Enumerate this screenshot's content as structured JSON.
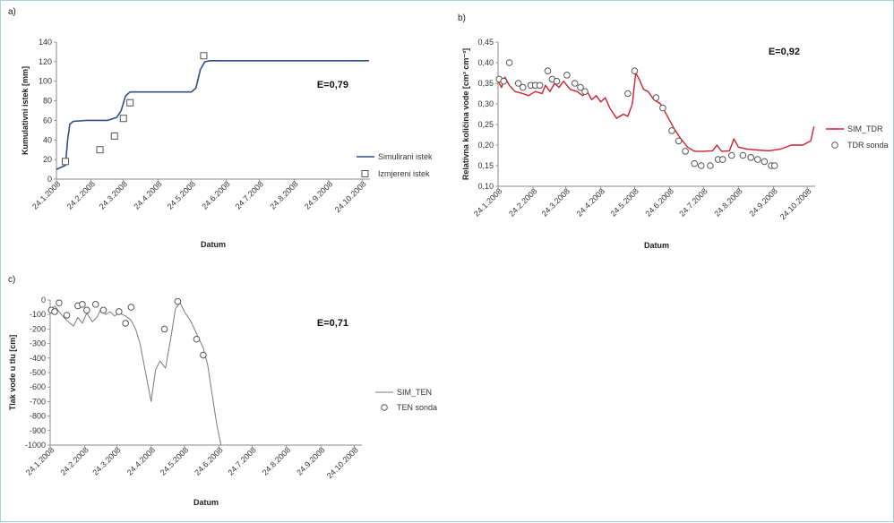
{
  "chart_data": [
    {
      "panel": "a)",
      "type": "line",
      "efficiency": "E=0,79",
      "xlabel": "Datum",
      "ylabel": "Kumulativni istek [mm]",
      "ylim": [
        0,
        140
      ],
      "yticks": [
        "0",
        "20",
        "40",
        "60",
        "80",
        "100",
        "120",
        "140"
      ],
      "x_ticks": [
        "24.1.2008",
        "24.2.2008",
        "24.3.2008",
        "24.4.2008",
        "24.5.2008",
        "24.6.2008",
        "24.7.2008",
        "24.8.2008",
        "24.9.2008",
        "24.10.2008"
      ],
      "colors": {
        "sim": "#2b4f86",
        "obs": "#555555"
      },
      "series": [
        {
          "name": "Simulirani istek",
          "style": "line",
          "points": [
            [
              "2008-01-24",
              10
            ],
            [
              "2008-01-28",
              12
            ],
            [
              "2008-02-01",
              14
            ],
            [
              "2008-02-03",
              40
            ],
            [
              "2008-02-05",
              56
            ],
            [
              "2008-02-08",
              59
            ],
            [
              "2008-02-20",
              60
            ],
            [
              "2008-03-10",
              60
            ],
            [
              "2008-03-18",
              63
            ],
            [
              "2008-03-22",
              70
            ],
            [
              "2008-03-26",
              85
            ],
            [
              "2008-03-30",
              89
            ],
            [
              "2008-04-15",
              89
            ],
            [
              "2008-05-24",
              89
            ],
            [
              "2008-05-28",
              93
            ],
            [
              "2008-06-01",
              112
            ],
            [
              "2008-06-05",
              120
            ],
            [
              "2008-06-10",
              121
            ],
            [
              "2008-07-24",
              121
            ],
            [
              "2008-10-30",
              121
            ]
          ]
        },
        {
          "name": "Izmjereni istek",
          "style": "square-marker",
          "points": [
            [
              "2008-02-01",
              18
            ],
            [
              "2008-03-03",
              30
            ],
            [
              "2008-03-16",
              44
            ],
            [
              "2008-03-24",
              62
            ],
            [
              "2008-03-30",
              78
            ],
            [
              "2008-06-04",
              126
            ]
          ]
        }
      ]
    },
    {
      "panel": "b)",
      "type": "line",
      "efficiency": "E=0,92",
      "xlabel": "Datum",
      "ylabel": "Relativna količina vode [cm³ cm⁻³]",
      "ylim": [
        0.1,
        0.45
      ],
      "yticks": [
        "0,10",
        "0,15",
        "0,20",
        "0,25",
        "0,30",
        "0,35",
        "0,40",
        "0,45"
      ],
      "x_ticks": [
        "24.1.2008",
        "24.2.2008",
        "24.3.2008",
        "24.4.2008",
        "24.5.2008",
        "24.6.2008",
        "24.7.2008",
        "24.8.2008",
        "24.9.2008",
        "24.10.2008"
      ],
      "colors": {
        "sim": "#d21f2a",
        "obs": "#555555"
      },
      "series": [
        {
          "name": "SIM_TDR",
          "style": "line",
          "points": [
            [
              "2008-01-24",
              0.355
            ],
            [
              "2008-01-27",
              0.34
            ],
            [
              "2008-01-30",
              0.365
            ],
            [
              "2008-02-03",
              0.345
            ],
            [
              "2008-02-08",
              0.33
            ],
            [
              "2008-02-15",
              0.325
            ],
            [
              "2008-02-20",
              0.32
            ],
            [
              "2008-02-26",
              0.33
            ],
            [
              "2008-03-03",
              0.325
            ],
            [
              "2008-03-06",
              0.345
            ],
            [
              "2008-03-10",
              0.33
            ],
            [
              "2008-03-14",
              0.35
            ],
            [
              "2008-03-18",
              0.34
            ],
            [
              "2008-03-22",
              0.355
            ],
            [
              "2008-03-28",
              0.335
            ],
            [
              "2008-04-03",
              0.33
            ],
            [
              "2008-04-08",
              0.32
            ],
            [
              "2008-04-12",
              0.33
            ],
            [
              "2008-04-16",
              0.31
            ],
            [
              "2008-04-20",
              0.32
            ],
            [
              "2008-04-24",
              0.305
            ],
            [
              "2008-04-28",
              0.315
            ],
            [
              "2008-05-02",
              0.29
            ],
            [
              "2008-05-08",
              0.265
            ],
            [
              "2008-05-14",
              0.275
            ],
            [
              "2008-05-18",
              0.27
            ],
            [
              "2008-05-22",
              0.3
            ],
            [
              "2008-05-25",
              0.375
            ],
            [
              "2008-05-28",
              0.36
            ],
            [
              "2008-06-01",
              0.335
            ],
            [
              "2008-06-05",
              0.33
            ],
            [
              "2008-06-10",
              0.31
            ],
            [
              "2008-06-16",
              0.3
            ],
            [
              "2008-06-22",
              0.27
            ],
            [
              "2008-06-28",
              0.24
            ],
            [
              "2008-07-04",
              0.215
            ],
            [
              "2008-07-10",
              0.195
            ],
            [
              "2008-07-16",
              0.185
            ],
            [
              "2008-07-24",
              0.185
            ],
            [
              "2008-08-01",
              0.186
            ],
            [
              "2008-08-05",
              0.2
            ],
            [
              "2008-08-09",
              0.185
            ],
            [
              "2008-08-16",
              0.186
            ],
            [
              "2008-08-20",
              0.215
            ],
            [
              "2008-08-24",
              0.195
            ],
            [
              "2008-09-01",
              0.19
            ],
            [
              "2008-09-10",
              0.188
            ],
            [
              "2008-09-20",
              0.186
            ],
            [
              "2008-09-30",
              0.19
            ],
            [
              "2008-10-10",
              0.2
            ],
            [
              "2008-10-20",
              0.2
            ],
            [
              "2008-10-27",
              0.21
            ],
            [
              "2008-10-30",
              0.245
            ]
          ]
        },
        {
          "name": "TDR sonda",
          "style": "circle-marker",
          "points": [
            [
              "2008-01-25",
              0.36
            ],
            [
              "2008-01-29",
              0.355
            ],
            [
              "2008-02-03",
              0.4
            ],
            [
              "2008-02-11",
              0.35
            ],
            [
              "2008-02-15",
              0.34
            ],
            [
              "2008-02-22",
              0.345
            ],
            [
              "2008-02-26",
              0.345
            ],
            [
              "2008-03-01",
              0.345
            ],
            [
              "2008-03-08",
              0.38
            ],
            [
              "2008-03-12",
              0.36
            ],
            [
              "2008-03-16",
              0.355
            ],
            [
              "2008-03-25",
              0.37
            ],
            [
              "2008-04-01",
              0.35
            ],
            [
              "2008-04-06",
              0.34
            ],
            [
              "2008-04-10",
              0.33
            ],
            [
              "2008-05-18",
              0.325
            ],
            [
              "2008-05-24",
              0.38
            ],
            [
              "2008-06-12",
              0.315
            ],
            [
              "2008-06-18",
              0.29
            ],
            [
              "2008-06-26",
              0.235
            ],
            [
              "2008-07-02",
              0.21
            ],
            [
              "2008-07-08",
              0.185
            ],
            [
              "2008-07-16",
              0.155
            ],
            [
              "2008-07-22",
              0.15
            ],
            [
              "2008-07-30",
              0.15
            ],
            [
              "2008-08-06",
              0.165
            ],
            [
              "2008-08-10",
              0.165
            ],
            [
              "2008-08-18",
              0.175
            ],
            [
              "2008-08-28",
              0.175
            ],
            [
              "2008-09-04",
              0.17
            ],
            [
              "2008-09-10",
              0.165
            ],
            [
              "2008-09-16",
              0.16
            ],
            [
              "2008-09-22",
              0.15
            ],
            [
              "2008-09-25",
              0.15
            ]
          ]
        }
      ]
    },
    {
      "panel": "c)",
      "type": "line",
      "efficiency": "E=0,71",
      "xlabel": "Datum",
      "ylabel": "Tlak vode u tlu [cm]",
      "ylim": [
        -1000,
        0
      ],
      "yticks": [
        "-1000",
        "-900",
        "-800",
        "-700",
        "-600",
        "-500",
        "-400",
        "-300",
        "-200",
        "-100",
        "0"
      ],
      "x_ticks": [
        "24.1.2008",
        "24.2.2008",
        "24.3.2008",
        "24.4.2008",
        "24.5.2008",
        "24.6.2008",
        "24.7.2008",
        "24.8.2008",
        "24.9.2008",
        "24.10.2008"
      ],
      "colors": {
        "sim": "#7a7a7a",
        "obs": "#555555"
      },
      "series": [
        {
          "name": "SIM_TEN",
          "style": "line",
          "points": [
            [
              "2008-01-24",
              -80
            ],
            [
              "2008-01-28",
              -40
            ],
            [
              "2008-02-03",
              -100
            ],
            [
              "2008-02-08",
              -140
            ],
            [
              "2008-02-14",
              -180
            ],
            [
              "2008-02-18",
              -120
            ],
            [
              "2008-02-22",
              -160
            ],
            [
              "2008-02-26",
              -90
            ],
            [
              "2008-03-02",
              -150
            ],
            [
              "2008-03-06",
              -120
            ],
            [
              "2008-03-10",
              -60
            ],
            [
              "2008-03-14",
              -100
            ],
            [
              "2008-03-18",
              -80
            ],
            [
              "2008-03-22",
              -110
            ],
            [
              "2008-03-26",
              -90
            ],
            [
              "2008-04-01",
              -110
            ],
            [
              "2008-04-06",
              -140
            ],
            [
              "2008-04-10",
              -200
            ],
            [
              "2008-04-14",
              -300
            ],
            [
              "2008-04-18",
              -460
            ],
            [
              "2008-04-24",
              -700
            ],
            [
              "2008-04-28",
              -480
            ],
            [
              "2008-05-02",
              -420
            ],
            [
              "2008-05-07",
              -470
            ],
            [
              "2008-05-12",
              -250
            ],
            [
              "2008-05-16",
              -60
            ],
            [
              "2008-05-20",
              -20
            ],
            [
              "2008-05-24",
              -80
            ],
            [
              "2008-05-30",
              -150
            ],
            [
              "2008-06-05",
              -250
            ],
            [
              "2008-06-10",
              -330
            ],
            [
              "2008-06-14",
              -450
            ],
            [
              "2008-06-18",
              -650
            ],
            [
              "2008-06-22",
              -850
            ],
            [
              "2008-06-26",
              -1000
            ]
          ]
        },
        {
          "name": "TEN sonda",
          "style": "circle-marker",
          "points": [
            [
              "2008-01-25",
              -70
            ],
            [
              "2008-01-28",
              -80
            ],
            [
              "2008-02-01",
              -20
            ],
            [
              "2008-02-08",
              -105
            ],
            [
              "2008-02-18",
              -40
            ],
            [
              "2008-02-22",
              -30
            ],
            [
              "2008-02-26",
              -70
            ],
            [
              "2008-03-05",
              -30
            ],
            [
              "2008-03-12",
              -70
            ],
            [
              "2008-03-26",
              -80
            ],
            [
              "2008-04-01",
              -160
            ],
            [
              "2008-04-06",
              -50
            ],
            [
              "2008-05-06",
              -200
            ],
            [
              "2008-05-18",
              -10
            ],
            [
              "2008-06-04",
              -270
            ],
            [
              "2008-06-10",
              -380
            ]
          ]
        }
      ]
    }
  ]
}
